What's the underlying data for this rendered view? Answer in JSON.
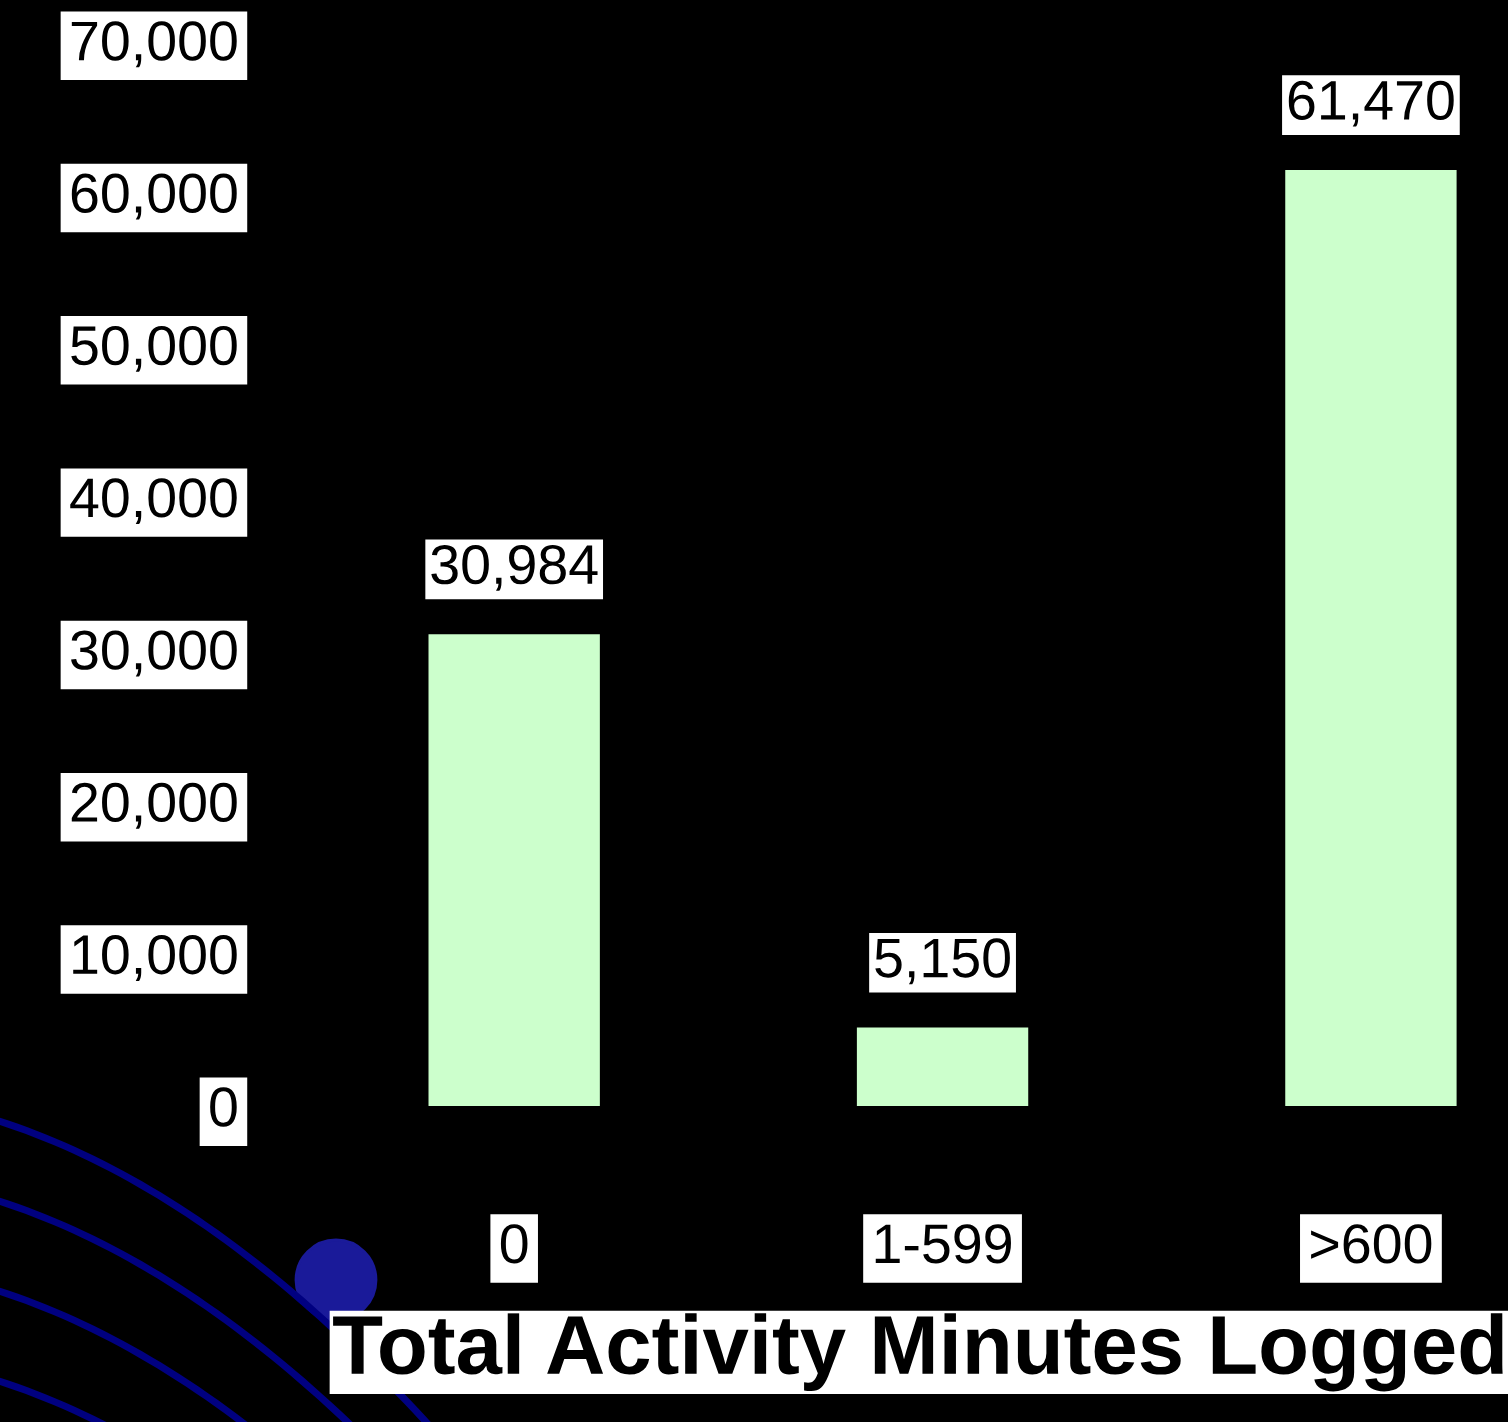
{
  "chart_data": {
    "type": "bar",
    "xlabel": "Total Activity Minutes Logged",
    "categories": [
      "0",
      "1-599",
      ">600"
    ],
    "values": [
      30984,
      5150,
      61470
    ],
    "color": "#ccffcc",
    "value_labels": [
      "30,984",
      "5,150",
      "61,470"
    ],
    "ylim": [
      0,
      70000
    ],
    "yticks": [
      0,
      {
        "value": 10000,
        "label": "10,000"
      },
      {
        "value": 20000,
        "label": "20,000"
      },
      {
        "value": 30000,
        "label": "30,000"
      },
      {
        "value": 40000,
        "label": "40,000"
      },
      {
        "value": 50000,
        "label": "50,000"
      },
      {
        "value": 60000,
        "label": "60,000"
      },
      {
        "value": 70000,
        "label": "70,000"
      }
    ],
    "grid": false,
    "legend": false
  }
}
